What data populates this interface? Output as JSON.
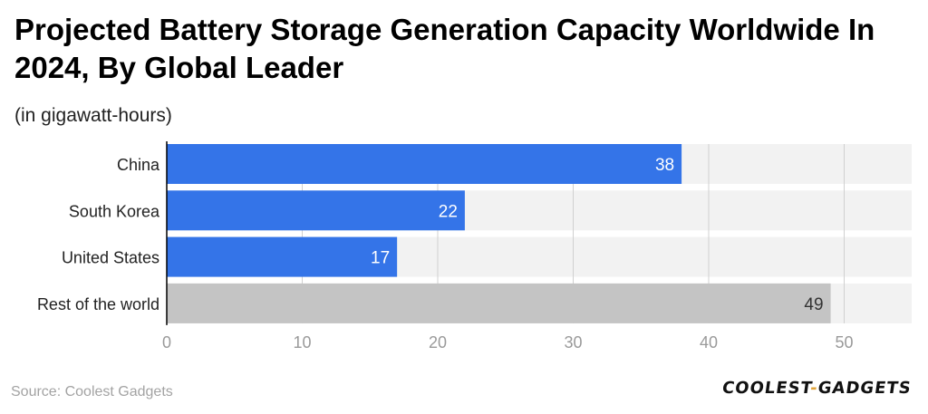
{
  "title": "Projected Battery Storage Generation Capacity Worldwide In 2024, By Global Leader",
  "subtitle": "(in gigawatt-hours)",
  "source": "Source: Coolest Gadgets",
  "logo": {
    "part1": "COOLEST",
    "dash": "-",
    "part2": "GADGETS"
  },
  "colors": {
    "primary": "#3474e8",
    "secondary": "#c4c4c4",
    "track": "#f2f2f2",
    "grid": "#d0d0d0"
  },
  "chart_data": {
    "type": "bar",
    "orientation": "horizontal",
    "categories": [
      "China",
      "South Korea",
      "United States",
      "Rest of the world"
    ],
    "values": [
      38,
      22,
      17,
      49
    ],
    "bar_colors": [
      "#3474e8",
      "#3474e8",
      "#3474e8",
      "#c4c4c4"
    ],
    "xlim": [
      0,
      55
    ],
    "xticks": [
      0,
      10,
      20,
      30,
      40,
      50
    ],
    "grid": true
  }
}
